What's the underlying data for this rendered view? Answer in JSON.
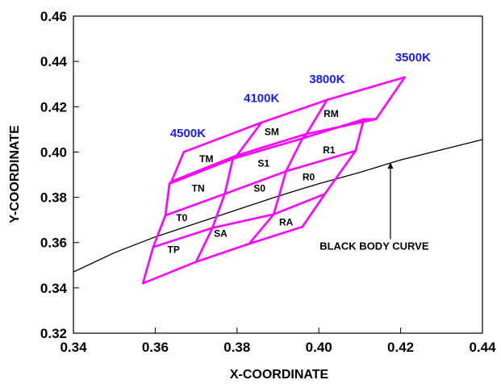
{
  "chart_data": {
    "type": "line",
    "title": "",
    "xlabel": "X-COORDINATE",
    "ylabel": "Y-COORDINATE",
    "xlim": [
      0.34,
      0.44
    ],
    "ylim": [
      0.32,
      0.46
    ],
    "grid": false,
    "x_ticks": [
      "0.34",
      "0.36",
      "0.38",
      "0.40",
      "0.42",
      "0.44"
    ],
    "y_ticks": [
      "0.32",
      "0.34",
      "0.36",
      "0.38",
      "0.40",
      "0.42",
      "0.44",
      "0.46"
    ],
    "colors": {
      "quad": "#ff00ff",
      "temp_label": "#1a1aff",
      "curve": "#000000"
    },
    "black_body_curve": {
      "x": [
        0.34,
        0.35,
        0.36,
        0.37,
        0.38,
        0.39,
        0.4,
        0.41,
        0.42,
        0.43,
        0.44
      ],
      "y": [
        0.347,
        0.3555,
        0.3625,
        0.3685,
        0.3745,
        0.3805,
        0.386,
        0.391,
        0.3965,
        0.401,
        0.4055
      ]
    },
    "quadrangles": {
      "top": [
        [
          0.367,
          0.4
        ],
        [
          0.386,
          0.413
        ],
        [
          0.402,
          0.423
        ],
        [
          0.421,
          0.433
        ]
      ],
      "row_tm_sm_rm": [
        [
          0.364,
          0.387
        ],
        [
          0.38,
          0.3985
        ],
        [
          0.397,
          0.408
        ],
        [
          0.414,
          0.4145
        ]
      ],
      "row_tn_s1_r1": [
        [
          0.3635,
          0.386
        ],
        [
          0.379,
          0.397
        ],
        [
          0.396,
          0.406
        ],
        [
          0.411,
          0.4145
        ]
      ],
      "row_s0_r0": [
        [
          0.3625,
          0.372
        ],
        [
          0.377,
          0.3815
        ],
        [
          0.392,
          0.3915
        ],
        [
          0.409,
          0.4005
        ]
      ],
      "row_t0_sa_ra": [
        [
          0.3595,
          0.358
        ],
        [
          0.374,
          0.3665
        ],
        [
          0.389,
          0.3725
        ],
        [
          0.4015,
          0.3815
        ]
      ],
      "bottom": [
        [
          0.357,
          0.342
        ],
        [
          0.37,
          0.3515
        ],
        [
          0.383,
          0.3595
        ],
        [
          0.396,
          0.367
        ]
      ]
    },
    "temperature_labels": [
      "4500K",
      "4100K",
      "3800K",
      "3500K"
    ],
    "bin_labels": [
      "TM",
      "SM",
      "RM",
      "S1",
      "R1",
      "TN",
      "S0",
      "R0",
      "T0",
      "SA",
      "RA",
      "TP"
    ],
    "annotation": "BLACK BODY CURVE"
  }
}
